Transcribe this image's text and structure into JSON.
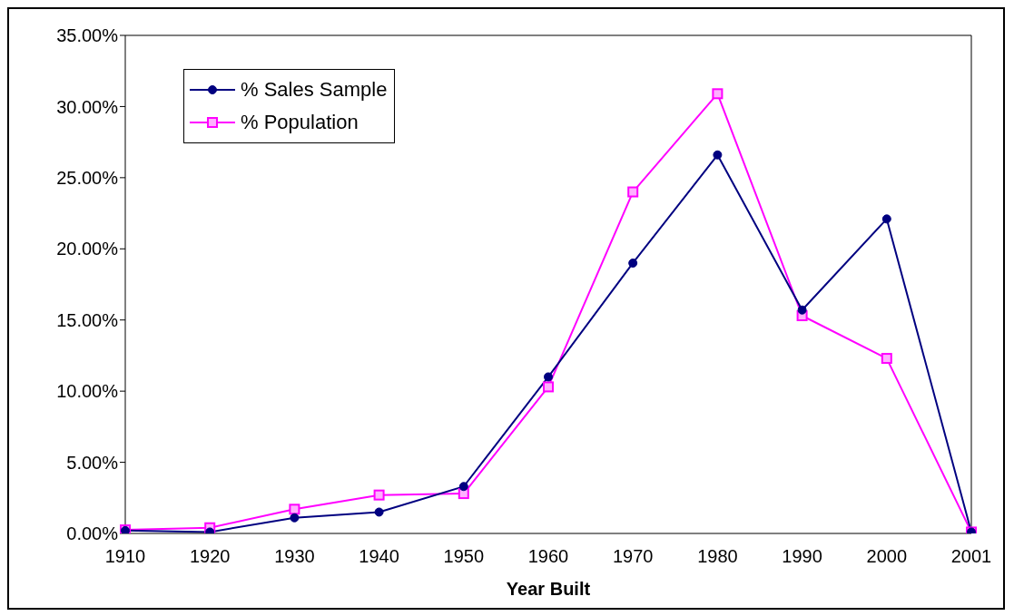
{
  "chart_data": {
    "type": "line",
    "xlabel": "Year Built",
    "categories": [
      "1910",
      "1920",
      "1930",
      "1940",
      "1950",
      "1960",
      "1970",
      "1980",
      "1990",
      "2000",
      "2001"
    ],
    "series": [
      {
        "name": "% Sales Sample",
        "color": "#000080",
        "marker": "circle",
        "values": [
          0.2,
          0.1,
          1.1,
          1.5,
          3.3,
          11.0,
          19.0,
          26.6,
          15.7,
          22.1,
          0.1
        ]
      },
      {
        "name": "% Population",
        "color": "#ff00ff",
        "marker": "square",
        "values": [
          0.25,
          0.4,
          1.7,
          2.7,
          2.8,
          10.3,
          24.0,
          30.9,
          15.3,
          12.3,
          0.1
        ]
      }
    ],
    "ylim": [
      0,
      35
    ],
    "yticks": [
      {
        "value": 0,
        "label": "0.00%"
      },
      {
        "value": 5,
        "label": "5.00%"
      },
      {
        "value": 10,
        "label": "10.00%"
      },
      {
        "value": 15,
        "label": "15.00%"
      },
      {
        "value": 20,
        "label": "20.00%"
      },
      {
        "value": 25,
        "label": "25.00%"
      },
      {
        "value": 30,
        "label": "30.00%"
      },
      {
        "value": 35,
        "label": "35.00%"
      }
    ],
    "grid": false,
    "legend": "top left",
    "line_style": "solid"
  }
}
